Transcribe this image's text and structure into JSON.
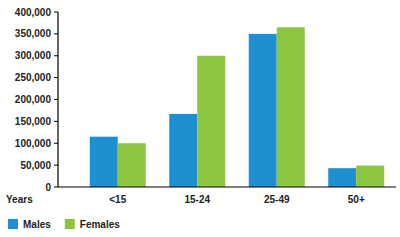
{
  "chart_data": {
    "type": "bar",
    "xlabel": "Years",
    "categories": [
      "<15",
      "15-24",
      "25-49",
      "50+"
    ],
    "series": [
      {
        "name": "Males",
        "color": "#1e90d2",
        "values": [
          115000,
          167000,
          350000,
          43000
        ]
      },
      {
        "name": "Females",
        "color": "#8cc63e",
        "values": [
          100000,
          300000,
          365000,
          49000
        ]
      }
    ],
    "ylim": [
      0,
      400000
    ],
    "yticks": [
      0,
      {
        "value": 50000,
        "label": "50,000"
      },
      {
        "value": 100000,
        "label": "100,000"
      },
      {
        "value": 150000,
        "label": "150,000"
      },
      {
        "value": 200000,
        "label": "200,000"
      },
      {
        "value": 250000,
        "label": "250,000"
      },
      {
        "value": 300000,
        "label": "300,000"
      },
      {
        "value": 350000,
        "label": "350,000"
      },
      {
        "value": 400000,
        "label": "400,000"
      }
    ],
    "grid": false,
    "legend": "bottom-left"
  }
}
